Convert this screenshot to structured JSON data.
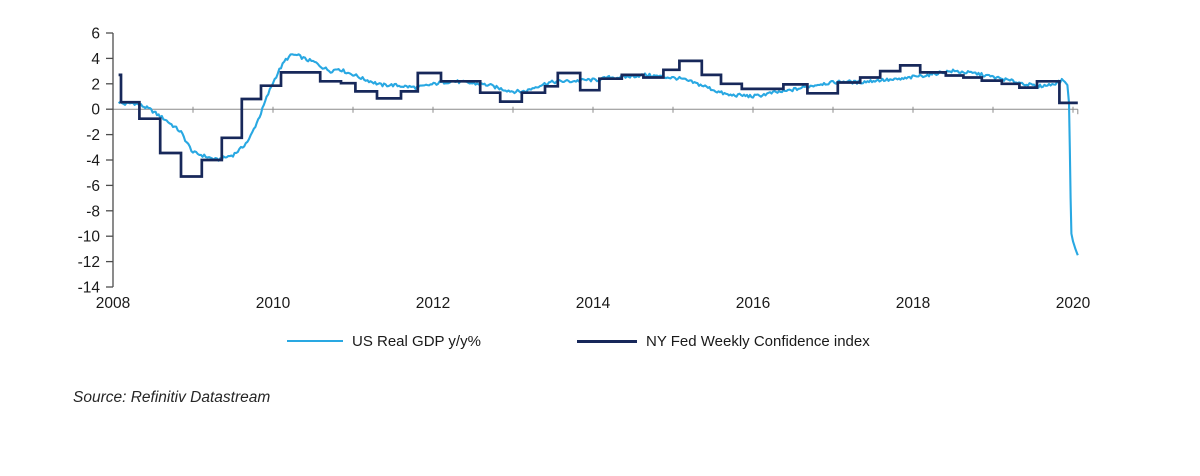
{
  "source_note": "Source: Refinitiv Datastream",
  "colors": {
    "gdp_line": "#29A8E2",
    "confidence_line": "#17285A",
    "axis": "#4d4d4d",
    "zero_line": "#8c8c8c",
    "text": "#1a1a1a"
  },
  "chart_data": {
    "type": "line",
    "title": "",
    "xlabel": "",
    "ylabel": "",
    "x_ticks": [
      2008,
      2010,
      2012,
      2014,
      2016,
      2018,
      2020
    ],
    "y_ticks": [
      6,
      4,
      2,
      0,
      -2,
      -4,
      -6,
      -8,
      -10,
      -12,
      -14
    ],
    "xlim": [
      2008,
      2020.06
    ],
    "ylim": [
      -14,
      6
    ],
    "grid": false,
    "zero_line": true,
    "legend_position": "bottom",
    "series": [
      {
        "name": "US Real GDP y/y%",
        "color": "#29A8E2",
        "style": "noisy-line",
        "noise_amplitude": 0.13,
        "noise_cutoff_x": 2019.9,
        "points": [
          [
            2008.07,
            0.55
          ],
          [
            2008.15,
            0.4
          ],
          [
            2008.25,
            0.5
          ],
          [
            2008.35,
            0.3
          ],
          [
            2008.46,
            0.0
          ],
          [
            2008.55,
            -0.4
          ],
          [
            2008.65,
            -0.8
          ],
          [
            2008.75,
            -1.3
          ],
          [
            2008.85,
            -1.8
          ],
          [
            2008.92,
            -2.6
          ],
          [
            2009.0,
            -3.4
          ],
          [
            2009.1,
            -3.6
          ],
          [
            2009.2,
            -3.8
          ],
          [
            2009.3,
            -4.0
          ],
          [
            2009.4,
            -3.8
          ],
          [
            2009.5,
            -3.6
          ],
          [
            2009.6,
            -3.1
          ],
          [
            2009.7,
            -2.4
          ],
          [
            2009.78,
            -1.3
          ],
          [
            2009.85,
            -0.3
          ],
          [
            2009.92,
            0.9
          ],
          [
            2010.0,
            2.1
          ],
          [
            2010.08,
            3.1
          ],
          [
            2010.16,
            3.9
          ],
          [
            2010.24,
            4.3
          ],
          [
            2010.32,
            4.2
          ],
          [
            2010.42,
            3.9
          ],
          [
            2010.52,
            3.7
          ],
          [
            2010.62,
            3.3
          ],
          [
            2010.72,
            3.0
          ],
          [
            2010.82,
            3.2
          ],
          [
            2010.92,
            2.9
          ],
          [
            2011.02,
            2.7
          ],
          [
            2011.12,
            2.4
          ],
          [
            2011.22,
            2.2
          ],
          [
            2011.35,
            1.9
          ],
          [
            2011.5,
            1.9
          ],
          [
            2011.65,
            1.8
          ],
          [
            2011.8,
            1.7
          ],
          [
            2011.95,
            1.9
          ],
          [
            2012.1,
            2.1
          ],
          [
            2012.25,
            2.2
          ],
          [
            2012.4,
            2.1
          ],
          [
            2012.55,
            2.0
          ],
          [
            2012.7,
            1.9
          ],
          [
            2012.85,
            1.6
          ],
          [
            2013.0,
            1.4
          ],
          [
            2013.15,
            1.4
          ],
          [
            2013.3,
            1.8
          ],
          [
            2013.45,
            2.1
          ],
          [
            2013.6,
            2.2
          ],
          [
            2013.75,
            2.2
          ],
          [
            2013.9,
            2.3
          ],
          [
            2014.05,
            2.3
          ],
          [
            2014.2,
            2.5
          ],
          [
            2014.35,
            2.5
          ],
          [
            2014.5,
            2.6
          ],
          [
            2014.65,
            2.7
          ],
          [
            2014.8,
            2.6
          ],
          [
            2014.95,
            2.5
          ],
          [
            2015.1,
            2.4
          ],
          [
            2015.25,
            2.1
          ],
          [
            2015.4,
            1.8
          ],
          [
            2015.55,
            1.4
          ],
          [
            2015.7,
            1.1
          ],
          [
            2015.85,
            1.1
          ],
          [
            2016.0,
            1.0
          ],
          [
            2016.1,
            1.1
          ],
          [
            2016.25,
            1.3
          ],
          [
            2016.4,
            1.4
          ],
          [
            2016.55,
            1.6
          ],
          [
            2016.7,
            1.8
          ],
          [
            2016.85,
            2.0
          ],
          [
            2017.0,
            2.1
          ],
          [
            2017.15,
            2.2
          ],
          [
            2017.3,
            2.1
          ],
          [
            2017.45,
            2.2
          ],
          [
            2017.6,
            2.3
          ],
          [
            2017.75,
            2.3
          ],
          [
            2017.9,
            2.4
          ],
          [
            2018.05,
            2.6
          ],
          [
            2018.2,
            2.7
          ],
          [
            2018.35,
            2.9
          ],
          [
            2018.5,
            3.0
          ],
          [
            2018.65,
            2.9
          ],
          [
            2018.8,
            2.8
          ],
          [
            2018.95,
            2.6
          ],
          [
            2019.1,
            2.4
          ],
          [
            2019.25,
            2.2
          ],
          [
            2019.4,
            2.0
          ],
          [
            2019.55,
            1.8
          ],
          [
            2019.7,
            1.9
          ],
          [
            2019.8,
            2.1
          ],
          [
            2019.88,
            2.3
          ],
          [
            2019.93,
            1.9
          ],
          [
            2019.95,
            0.5
          ],
          [
            2019.96,
            -3.0
          ],
          [
            2019.97,
            -7.0
          ],
          [
            2019.98,
            -9.8
          ],
          [
            2020.0,
            -10.4
          ],
          [
            2020.03,
            -11.0
          ],
          [
            2020.06,
            -11.5
          ]
        ]
      },
      {
        "name": "NY Fed Weekly Confidence index",
        "color": "#17285A",
        "style": "step",
        "end_x": 2020.06,
        "points": [
          [
            2008.07,
            2.7
          ],
          [
            2008.1,
            0.55
          ],
          [
            2008.33,
            -0.75
          ],
          [
            2008.59,
            -3.45
          ],
          [
            2008.85,
            -5.3
          ],
          [
            2009.11,
            -4.0
          ],
          [
            2009.36,
            -2.25
          ],
          [
            2009.61,
            0.8
          ],
          [
            2009.85,
            1.85
          ],
          [
            2010.1,
            2.9
          ],
          [
            2010.59,
            2.2
          ],
          [
            2010.85,
            2.05
          ],
          [
            2011.03,
            1.4
          ],
          [
            2011.3,
            0.85
          ],
          [
            2011.6,
            1.4
          ],
          [
            2011.81,
            2.85
          ],
          [
            2012.1,
            2.2
          ],
          [
            2012.59,
            1.3
          ],
          [
            2012.84,
            0.6
          ],
          [
            2013.11,
            1.3
          ],
          [
            2013.4,
            1.8
          ],
          [
            2013.56,
            2.85
          ],
          [
            2013.84,
            1.5
          ],
          [
            2014.08,
            2.4
          ],
          [
            2014.36,
            2.7
          ],
          [
            2014.63,
            2.5
          ],
          [
            2014.88,
            3.1
          ],
          [
            2015.08,
            3.8
          ],
          [
            2015.36,
            2.7
          ],
          [
            2015.6,
            2.0
          ],
          [
            2015.86,
            1.6
          ],
          [
            2016.38,
            1.95
          ],
          [
            2016.68,
            1.25
          ],
          [
            2017.06,
            2.1
          ],
          [
            2017.34,
            2.5
          ],
          [
            2017.59,
            3.0
          ],
          [
            2017.84,
            3.45
          ],
          [
            2018.09,
            2.9
          ],
          [
            2018.41,
            2.65
          ],
          [
            2018.63,
            2.5
          ],
          [
            2018.86,
            2.25
          ],
          [
            2019.11,
            2.0
          ],
          [
            2019.33,
            1.7
          ],
          [
            2019.55,
            2.2
          ],
          [
            2019.83,
            0.5
          ]
        ]
      }
    ]
  }
}
